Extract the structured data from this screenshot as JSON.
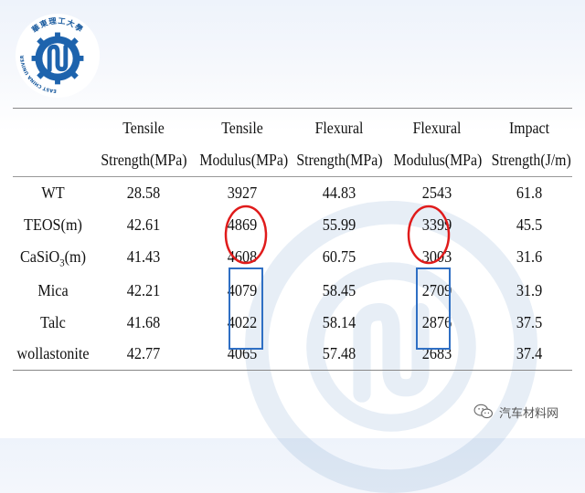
{
  "header": {
    "logo_text_cn": "華東理工大學",
    "logo_text_en": "EAST CHINA UNIVERSITY OF SCIENCE AND TECHNOLOGY"
  },
  "table": {
    "columns": [
      {
        "line1": "",
        "line2": ""
      },
      {
        "line1": "Tensile",
        "line2": "Strength(MPa)"
      },
      {
        "line1": "Tensile",
        "line2": "Modulus(MPa)"
      },
      {
        "line1": "Flexural",
        "line2": "Strength(MPa)"
      },
      {
        "line1": "Flexural",
        "line2": "Modulus(MPa)"
      },
      {
        "line1": "Impact",
        "line2": "Strength(J/m)"
      }
    ],
    "rows": [
      {
        "label": "WT",
        "label_sub": "",
        "label_suffix": "",
        "values": [
          "28.58",
          "3927",
          "44.83",
          "2543",
          "61.8"
        ]
      },
      {
        "label": "TEOS(m)",
        "label_sub": "",
        "label_suffix": "",
        "values": [
          "42.61",
          "4869",
          "55.99",
          "3399",
          "45.5"
        ]
      },
      {
        "label": "CaSiO",
        "label_sub": "3",
        "label_suffix": "(m)",
        "values": [
          "41.43",
          "4608",
          "60.75",
          "3003",
          "31.6"
        ]
      },
      {
        "label": "Mica",
        "label_sub": "",
        "label_suffix": "",
        "values": [
          "42.21",
          "4079",
          "58.45",
          "2709",
          "31.9"
        ]
      },
      {
        "label": "Talc",
        "label_sub": "",
        "label_suffix": "",
        "values": [
          "41.68",
          "4022",
          "58.14",
          "2876",
          "37.5"
        ]
      },
      {
        "label": "wollastonite",
        "label_sub": "",
        "label_suffix": "",
        "values": [
          "42.77",
          "4065",
          "57.48",
          "2683",
          "37.4"
        ]
      }
    ]
  },
  "annotations": {
    "circle_color": "#e01b1b",
    "box_color": "#2f6fc4"
  },
  "credit": {
    "text": "汽车材料网",
    "icon": "wechat-icon"
  }
}
